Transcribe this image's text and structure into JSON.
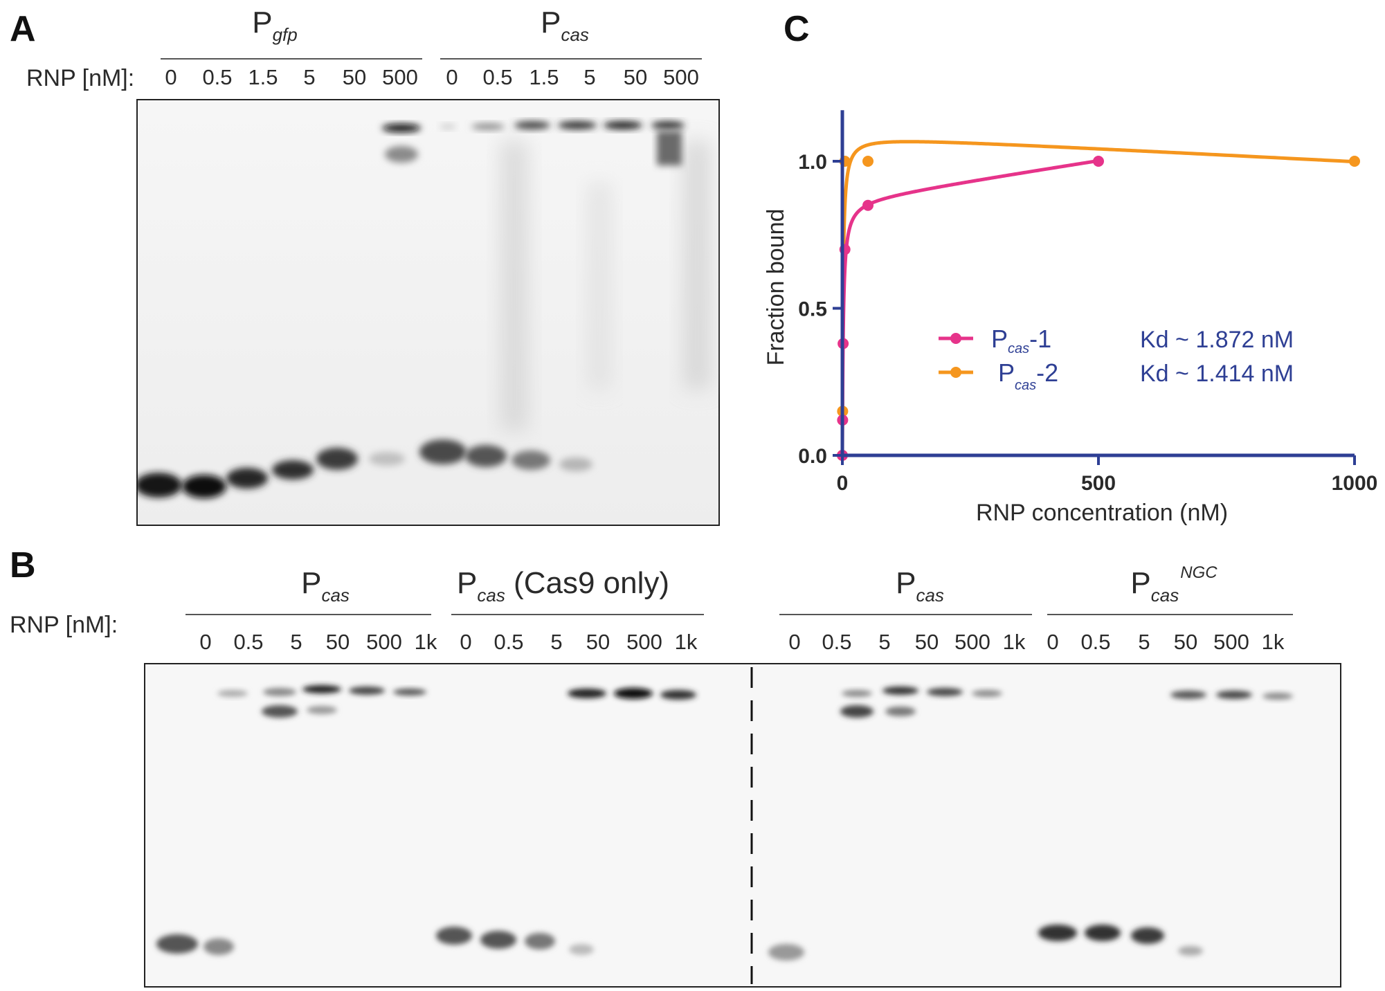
{
  "panelA": {
    "letter": "A",
    "rnp_label": "RNP [nM]:",
    "groups": [
      {
        "main": "P",
        "sub": "gfp",
        "lanes": [
          "0",
          "0.5",
          "1.5",
          "5",
          "50",
          "500"
        ]
      },
      {
        "main": "P",
        "sub": "cas",
        "lanes": [
          "0",
          "0.5",
          "1.5",
          "5",
          "50",
          "500"
        ]
      }
    ]
  },
  "panelB": {
    "letter": "B",
    "rnp_label": "RNP [nM]:",
    "groups": [
      {
        "main": "P",
        "sub": "cas",
        "extra": "",
        "sup": "",
        "lanes": [
          "0",
          "0.5",
          "5",
          "50",
          "500",
          "1k"
        ]
      },
      {
        "main": "P",
        "sub": "cas",
        "extra": " (Cas9 only)",
        "sup": "",
        "lanes": [
          "0",
          "0.5",
          "5",
          "50",
          "500",
          "1k"
        ]
      },
      {
        "main": "P",
        "sub": "cas",
        "extra": "",
        "sup": "",
        "lanes": [
          "0",
          "0.5",
          "5",
          "50",
          "500",
          "1k"
        ]
      },
      {
        "main": "P",
        "sub": "cas",
        "extra": "",
        "sup": "NGC",
        "lanes": [
          "0",
          "0.5",
          "5",
          "50",
          "500",
          "1k"
        ]
      }
    ]
  },
  "panelC": {
    "letter": "C",
    "chart_data": {
      "type": "scatter",
      "xlabel": "RNP concentration (nM)",
      "ylabel": "Fraction bound",
      "xlim": [
        0,
        1000
      ],
      "ylim": [
        0,
        1.15
      ],
      "xticks": [
        "0",
        "500",
        "1000"
      ],
      "yticks": [
        "0.0",
        "0.5",
        "1.0"
      ],
      "axis_color": "#2e3f94",
      "legend_position": "center",
      "series": [
        {
          "name_main": "P",
          "name_sub": "cas",
          "name_suffix": "-1",
          "color": "#e6338a",
          "kd_text": "Kd ~ 1.872 nM",
          "x": [
            0,
            0.5,
            1.5,
            5,
            50,
            500
          ],
          "y": [
            0.0,
            0.12,
            0.38,
            0.7,
            0.85,
            1.0
          ]
        },
        {
          "name_main": "P",
          "name_sub": "cas",
          "name_suffix": "-2",
          "color": "#f5961e",
          "kd_text": "Kd ~ 1.414 nM",
          "x": [
            0,
            0.5,
            5,
            50,
            1000
          ],
          "y": [
            0.0,
            0.15,
            1.0,
            1.0,
            1.0
          ]
        }
      ]
    }
  }
}
